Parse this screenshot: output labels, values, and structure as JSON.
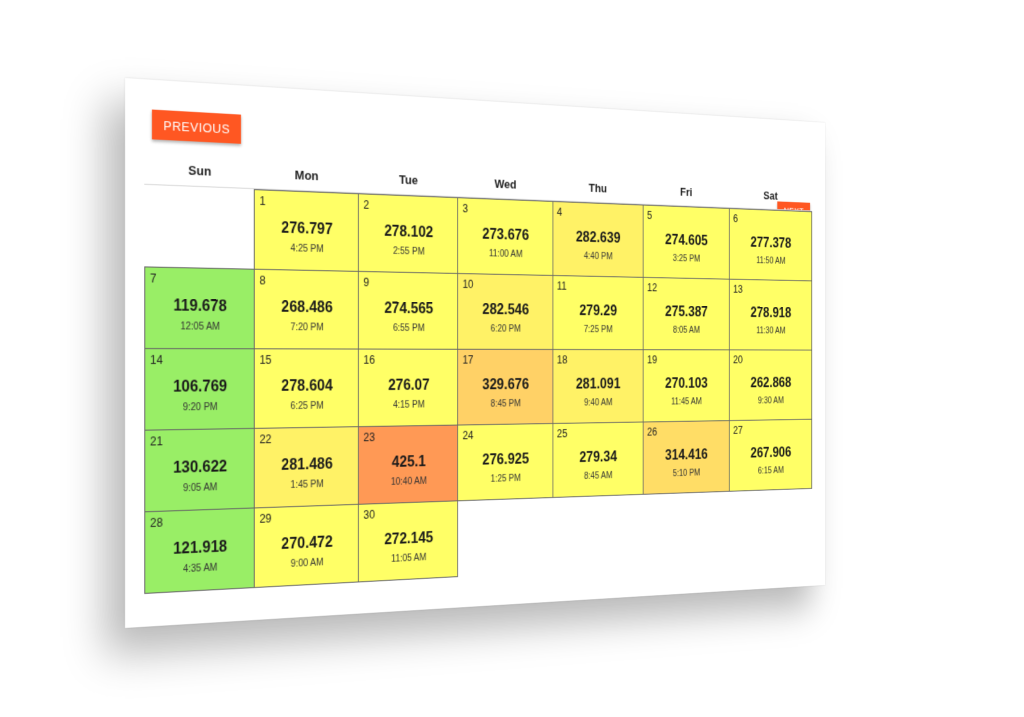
{
  "buttons": {
    "previous": "PREVIOUS",
    "next": "NEXT"
  },
  "weekdays": [
    "Sun",
    "Mon",
    "Tue",
    "Wed",
    "Thu",
    "Fri",
    "Sat"
  ],
  "leading_empty_days": 1,
  "days": [
    {
      "day": "1",
      "value": "276.797",
      "time": "4:25 PM",
      "color": "#ffff66"
    },
    {
      "day": "2",
      "value": "278.102",
      "time": "2:55 PM",
      "color": "#ffff66"
    },
    {
      "day": "3",
      "value": "273.676",
      "time": "11:00 AM",
      "color": "#ffff66"
    },
    {
      "day": "4",
      "value": "282.639",
      "time": "4:40 PM",
      "color": "#fff266"
    },
    {
      "day": "5",
      "value": "274.605",
      "time": "3:25 PM",
      "color": "#ffff66"
    },
    {
      "day": "6",
      "value": "277.378",
      "time": "11:50 AM",
      "color": "#ffff66"
    },
    {
      "day": "7",
      "value": "119.678",
      "time": "12:05 AM",
      "color": "#99ee66"
    },
    {
      "day": "8",
      "value": "268.486",
      "time": "7:20 PM",
      "color": "#ffff66"
    },
    {
      "day": "9",
      "value": "274.565",
      "time": "6:55 PM",
      "color": "#ffff66"
    },
    {
      "day": "10",
      "value": "282.546",
      "time": "6:20 PM",
      "color": "#fff266"
    },
    {
      "day": "11",
      "value": "279.29",
      "time": "7:25 PM",
      "color": "#ffff66"
    },
    {
      "day": "12",
      "value": "275.387",
      "time": "8:05 AM",
      "color": "#ffff66"
    },
    {
      "day": "13",
      "value": "278.918",
      "time": "11:30 AM",
      "color": "#ffff66"
    },
    {
      "day": "14",
      "value": "106.769",
      "time": "9:20 PM",
      "color": "#99ee66"
    },
    {
      "day": "15",
      "value": "278.604",
      "time": "6:25 PM",
      "color": "#ffff66"
    },
    {
      "day": "16",
      "value": "276.07",
      "time": "4:15 PM",
      "color": "#ffff66"
    },
    {
      "day": "17",
      "value": "329.676",
      "time": "8:45 PM",
      "color": "#ffd166"
    },
    {
      "day": "18",
      "value": "281.091",
      "time": "9:40 AM",
      "color": "#fff266"
    },
    {
      "day": "19",
      "value": "270.103",
      "time": "11:45 AM",
      "color": "#ffff66"
    },
    {
      "day": "20",
      "value": "262.868",
      "time": "9:30 AM",
      "color": "#ffff66"
    },
    {
      "day": "21",
      "value": "130.622",
      "time": "9:05 AM",
      "color": "#99ee66"
    },
    {
      "day": "22",
      "value": "281.486",
      "time": "1:45 PM",
      "color": "#fff266"
    },
    {
      "day": "23",
      "value": "425.1",
      "time": "10:40 AM",
      "color": "#ff9955"
    },
    {
      "day": "24",
      "value": "276.925",
      "time": "1:25 PM",
      "color": "#ffff66"
    },
    {
      "day": "25",
      "value": "279.34",
      "time": "8:45 AM",
      "color": "#ffff66"
    },
    {
      "day": "26",
      "value": "314.416",
      "time": "5:10 PM",
      "color": "#ffdd66"
    },
    {
      "day": "27",
      "value": "267.906",
      "time": "6:15 AM",
      "color": "#ffff66"
    },
    {
      "day": "28",
      "value": "121.918",
      "time": "4:35 AM",
      "color": "#99ee66"
    },
    {
      "day": "29",
      "value": "270.472",
      "time": "9:00 AM",
      "color": "#ffff66"
    },
    {
      "day": "30",
      "value": "272.145",
      "time": "11:05 AM",
      "color": "#ffff66"
    }
  ]
}
